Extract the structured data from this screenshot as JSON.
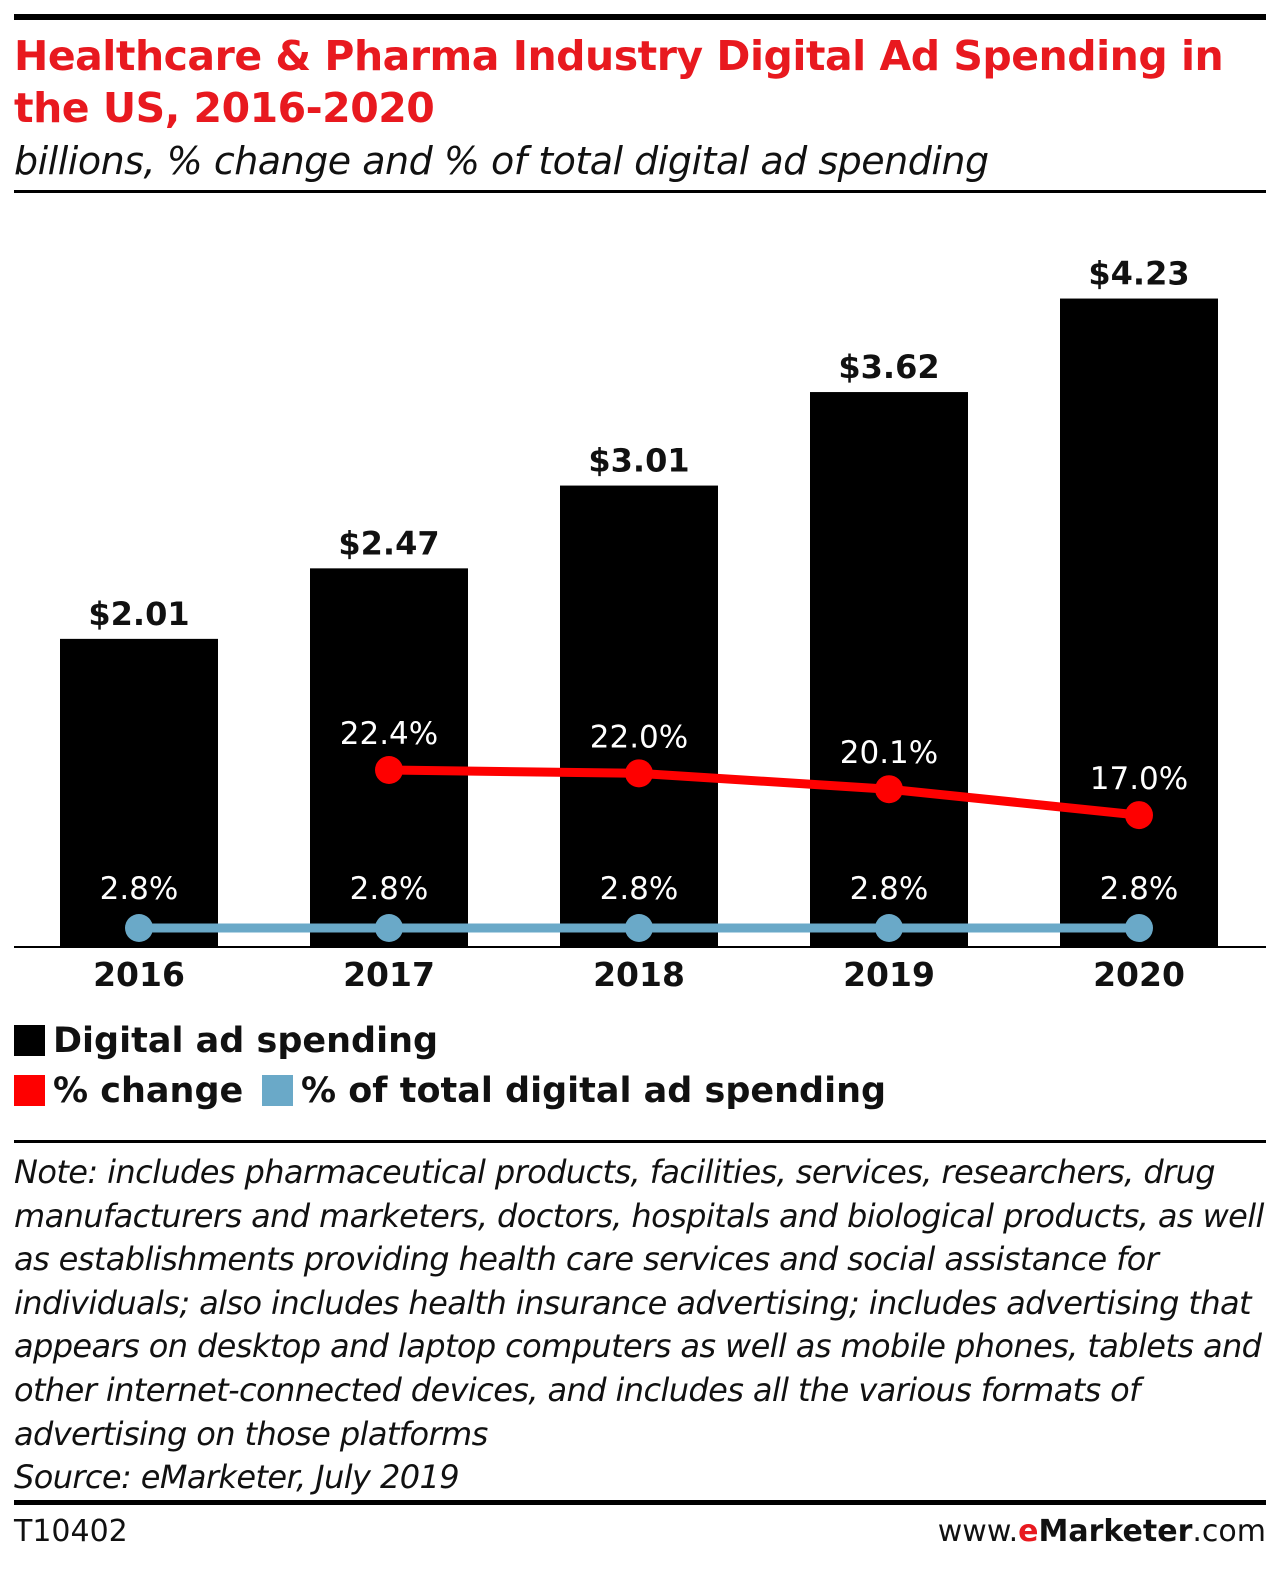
{
  "title": "Healthcare & Pharma Industry Digital Ad Spending in the US, 2016-2020",
  "subtitle": "billions, % change and % of total digital ad spending",
  "colors": {
    "title": "#e8191f",
    "bars": "#000000",
    "change_line": "#fe0000",
    "share_line": "#6aa9c8"
  },
  "chart_data": {
    "type": "bar",
    "categories": [
      "2016",
      "2017",
      "2018",
      "2019",
      "2020"
    ],
    "series": [
      {
        "name": "Digital ad spending",
        "type": "bar",
        "values": [
          2.01,
          2.47,
          3.01,
          3.62,
          4.23
        ],
        "labels": [
          "$2.01",
          "$2.47",
          "$3.01",
          "$3.62",
          "$4.23"
        ]
      },
      {
        "name": "% change",
        "type": "line",
        "values": [
          null,
          22.4,
          22.0,
          20.1,
          17.0
        ],
        "labels": [
          "",
          "22.4%",
          "22.0%",
          "20.1%",
          "17.0%"
        ]
      },
      {
        "name": "% of total digital ad spending",
        "type": "line",
        "values": [
          2.8,
          2.8,
          2.8,
          2.8,
          2.8
        ],
        "labels": [
          "2.8%",
          "2.8%",
          "2.8%",
          "2.8%",
          "2.8%"
        ]
      }
    ],
    "grid": false,
    "legend_position": "bottom-left"
  },
  "legend": [
    {
      "label": "Digital ad spending",
      "color": "#000000"
    },
    {
      "label": "% change",
      "color": "#fe0000"
    },
    {
      "label": "% of total digital ad spending",
      "color": "#6aa9c8"
    }
  ],
  "note": "Note: includes pharmaceutical products, facilities, services, researchers, drug manufacturers and marketers, doctors, hospitals and biological products, as well as establishments providing health care services and social assistance for individuals; also includes health insurance advertising; includes advertising that appears on desktop and laptop computers as well as mobile phones, tablets and other internet-connected devices, and includes all the various formats of advertising on those platforms",
  "source": "Source: eMarketer, July 2019",
  "chart_id": "T10402",
  "brand": {
    "prefix": "www.",
    "e": "e",
    "name": "Marketer",
    "suffix": ".com"
  }
}
